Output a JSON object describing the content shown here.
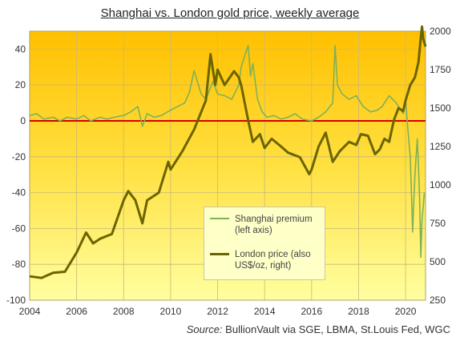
{
  "chart_data": {
    "type": "line",
    "title": "Shanghai vs. London gold price, weekly average",
    "source_label": "Source:",
    "source_text": "BullionVault via SGE, LBMA, St.Louis Fed, WGC",
    "x_ticks": [
      "2004",
      "2006",
      "2008",
      "2010",
      "2012",
      "2014",
      "2016",
      "2018",
      "2020"
    ],
    "y_left_ticks": [
      "40",
      "20",
      "0",
      "-20",
      "-40",
      "-60",
      "-80",
      "-100"
    ],
    "y_right_ticks": [
      "2000",
      "1750",
      "1500",
      "1250",
      "1000",
      "750",
      "500",
      "250"
    ],
    "xlim": [
      2004,
      2020.85
    ],
    "ylim_left": [
      -100,
      50
    ],
    "ylim_right": [
      250,
      2000
    ],
    "grid": true,
    "zero_line": {
      "value": 0,
      "color": "#d40000"
    },
    "legend_position": "bottom-center",
    "series": [
      {
        "name": "Shanghai premium (left axis)",
        "axis": "left",
        "color": "#7fb05a",
        "points": [
          [
            2004.0,
            3
          ],
          [
            2004.3,
            4
          ],
          [
            2004.6,
            1
          ],
          [
            2005.0,
            2
          ],
          [
            2005.3,
            0
          ],
          [
            2005.6,
            2
          ],
          [
            2006.0,
            1
          ],
          [
            2006.3,
            3
          ],
          [
            2006.6,
            0
          ],
          [
            2007.0,
            2
          ],
          [
            2007.3,
            1
          ],
          [
            2007.6,
            2
          ],
          [
            2008.0,
            3
          ],
          [
            2008.3,
            5
          ],
          [
            2008.6,
            8
          ],
          [
            2008.8,
            -3
          ],
          [
            2009.0,
            4
          ],
          [
            2009.3,
            2
          ],
          [
            2009.6,
            3
          ],
          [
            2010.0,
            6
          ],
          [
            2010.3,
            8
          ],
          [
            2010.6,
            10
          ],
          [
            2010.8,
            16
          ],
          [
            2011.0,
            28
          ],
          [
            2011.3,
            15
          ],
          [
            2011.5,
            12
          ],
          [
            2011.8,
            22
          ],
          [
            2012.0,
            15
          ],
          [
            2012.3,
            14
          ],
          [
            2012.6,
            12
          ],
          [
            2012.9,
            20
          ],
          [
            2013.0,
            30
          ],
          [
            2013.2,
            38
          ],
          [
            2013.3,
            42
          ],
          [
            2013.4,
            25
          ],
          [
            2013.5,
            32
          ],
          [
            2013.7,
            12
          ],
          [
            2013.9,
            5
          ],
          [
            2014.1,
            2
          ],
          [
            2014.4,
            3
          ],
          [
            2014.7,
            1
          ],
          [
            2015.0,
            2
          ],
          [
            2015.3,
            4
          ],
          [
            2015.6,
            1
          ],
          [
            2016.0,
            0
          ],
          [
            2016.3,
            2
          ],
          [
            2016.6,
            5
          ],
          [
            2016.9,
            10
          ],
          [
            2017.0,
            42
          ],
          [
            2017.1,
            20
          ],
          [
            2017.3,
            15
          ],
          [
            2017.6,
            12
          ],
          [
            2017.9,
            14
          ],
          [
            2018.2,
            8
          ],
          [
            2018.5,
            5
          ],
          [
            2018.8,
            6
          ],
          [
            2019.0,
            8
          ],
          [
            2019.3,
            14
          ],
          [
            2019.6,
            10
          ],
          [
            2019.9,
            4
          ],
          [
            2020.0,
            12
          ],
          [
            2020.1,
            -5
          ],
          [
            2020.2,
            -20
          ],
          [
            2020.25,
            -40
          ],
          [
            2020.3,
            -62
          ],
          [
            2020.35,
            -45
          ],
          [
            2020.4,
            -30
          ],
          [
            2020.5,
            -10
          ],
          [
            2020.55,
            -25
          ],
          [
            2020.6,
            -45
          ],
          [
            2020.65,
            -76
          ],
          [
            2020.7,
            -55
          ],
          [
            2020.75,
            -48
          ],
          [
            2020.8,
            -40
          ]
        ]
      },
      {
        "name": "London price (also US$/oz, right)",
        "axis": "right",
        "color": "#6b6400",
        "points": [
          [
            2004.0,
            405
          ],
          [
            2004.5,
            395
          ],
          [
            2005.0,
            428
          ],
          [
            2005.5,
            435
          ],
          [
            2006.0,
            560
          ],
          [
            2006.4,
            690
          ],
          [
            2006.7,
            620
          ],
          [
            2007.0,
            650
          ],
          [
            2007.5,
            680
          ],
          [
            2008.0,
            900
          ],
          [
            2008.2,
            960
          ],
          [
            2008.5,
            900
          ],
          [
            2008.8,
            750
          ],
          [
            2009.0,
            900
          ],
          [
            2009.5,
            950
          ],
          [
            2009.9,
            1150
          ],
          [
            2010.0,
            1100
          ],
          [
            2010.5,
            1220
          ],
          [
            2011.0,
            1360
          ],
          [
            2011.5,
            1550
          ],
          [
            2011.7,
            1850
          ],
          [
            2011.9,
            1650
          ],
          [
            2012.0,
            1750
          ],
          [
            2012.3,
            1650
          ],
          [
            2012.7,
            1740
          ],
          [
            2012.9,
            1700
          ],
          [
            2013.0,
            1650
          ],
          [
            2013.3,
            1420
          ],
          [
            2013.5,
            1280
          ],
          [
            2013.8,
            1330
          ],
          [
            2014.0,
            1240
          ],
          [
            2014.3,
            1300
          ],
          [
            2014.7,
            1250
          ],
          [
            2015.0,
            1210
          ],
          [
            2015.5,
            1180
          ],
          [
            2015.9,
            1070
          ],
          [
            2016.0,
            1100
          ],
          [
            2016.3,
            1250
          ],
          [
            2016.6,
            1340
          ],
          [
            2016.9,
            1150
          ],
          [
            2017.2,
            1220
          ],
          [
            2017.6,
            1280
          ],
          [
            2017.9,
            1260
          ],
          [
            2018.1,
            1330
          ],
          [
            2018.4,
            1320
          ],
          [
            2018.7,
            1200
          ],
          [
            2018.9,
            1230
          ],
          [
            2019.1,
            1300
          ],
          [
            2019.3,
            1280
          ],
          [
            2019.5,
            1420
          ],
          [
            2019.7,
            1500
          ],
          [
            2019.9,
            1480
          ],
          [
            2020.0,
            1550
          ],
          [
            2020.2,
            1650
          ],
          [
            2020.4,
            1700
          ],
          [
            2020.55,
            1800
          ],
          [
            2020.65,
            1960
          ],
          [
            2020.7,
            2030
          ],
          [
            2020.75,
            1950
          ],
          [
            2020.85,
            1900
          ]
        ]
      }
    ]
  },
  "legend": {
    "entries": [
      {
        "line1": "Shanghai premium",
        "line2": "(left axis)"
      },
      {
        "line1": "London price (also",
        "line2": "US$/oz, right)"
      }
    ]
  }
}
